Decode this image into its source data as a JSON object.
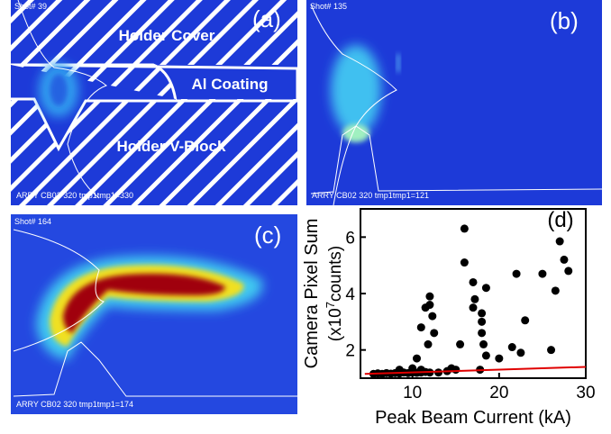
{
  "panels": [
    {
      "label": "(a)",
      "shot": "Shot# 39",
      "footer": "ARRY CB02 320 tmp1tmp1=330",
      "annotations": [
        "Holder Cover",
        "Al Coating",
        "Holder V-Block"
      ]
    },
    {
      "label": "(b)",
      "shot": "Shot# 135",
      "footer": "ARRY CB02 320 tmp1tmp1=121"
    },
    {
      "label": "(c)",
      "shot": "Shot# 164",
      "footer": "ARRY CB02 320 tmp1tmp1=174"
    }
  ],
  "chart_data": {
    "type": "scatter",
    "label": "(d)",
    "x_label": "Peak Beam Current (kA)",
    "y_label": "Camera Pixel Sum",
    "y_unit_label": {
      "prefix": "(x10",
      "sup": "7",
      "suffix": "counts)"
    },
    "xlim": [
      4,
      30
    ],
    "ylim": [
      1,
      7
    ],
    "xticks": [
      10,
      20,
      30
    ],
    "yticks": [
      2,
      4,
      6
    ],
    "series": [
      {
        "color": "#000000",
        "x": [
          5.5,
          6,
          6.5,
          7,
          7.5,
          8,
          8.5,
          9,
          9.5,
          10,
          10.5,
          11,
          11.5,
          12,
          13,
          14,
          15,
          8.5,
          10,
          11,
          14.5,
          10.5,
          11,
          11.5,
          12,
          12,
          12.5,
          11.8,
          12.3,
          15.5,
          16,
          16,
          17,
          17.2,
          17,
          17.8,
          18,
          18,
          18,
          18.2,
          18.5,
          18.5,
          20,
          21.5,
          22,
          22.5,
          23,
          25,
          26,
          26.5,
          27,
          27.5,
          28
        ],
        "values": [
          1.15,
          1.17,
          1.15,
          1.18,
          1.16,
          1.18,
          1.17,
          1.2,
          1.18,
          1.2,
          1.19,
          1.2,
          1.22,
          1.2,
          1.2,
          1.25,
          1.3,
          1.3,
          1.35,
          1.3,
          1.35,
          1.7,
          2.8,
          3.5,
          3.6,
          3.9,
          2.6,
          2.2,
          3.2,
          2.2,
          6.3,
          5.1,
          4.4,
          3.8,
          3.5,
          1.3,
          3.3,
          3.0,
          2.6,
          2.2,
          4.2,
          1.8,
          1.7,
          2.1,
          4.7,
          1.9,
          3.05,
          4.7,
          2.0,
          4.1,
          5.85,
          5.2,
          4.8
        ]
      }
    ],
    "fit_line": {
      "color": "#e00000",
      "x": [
        4.5,
        30
      ],
      "values": [
        1.15,
        1.4
      ]
    }
  }
}
